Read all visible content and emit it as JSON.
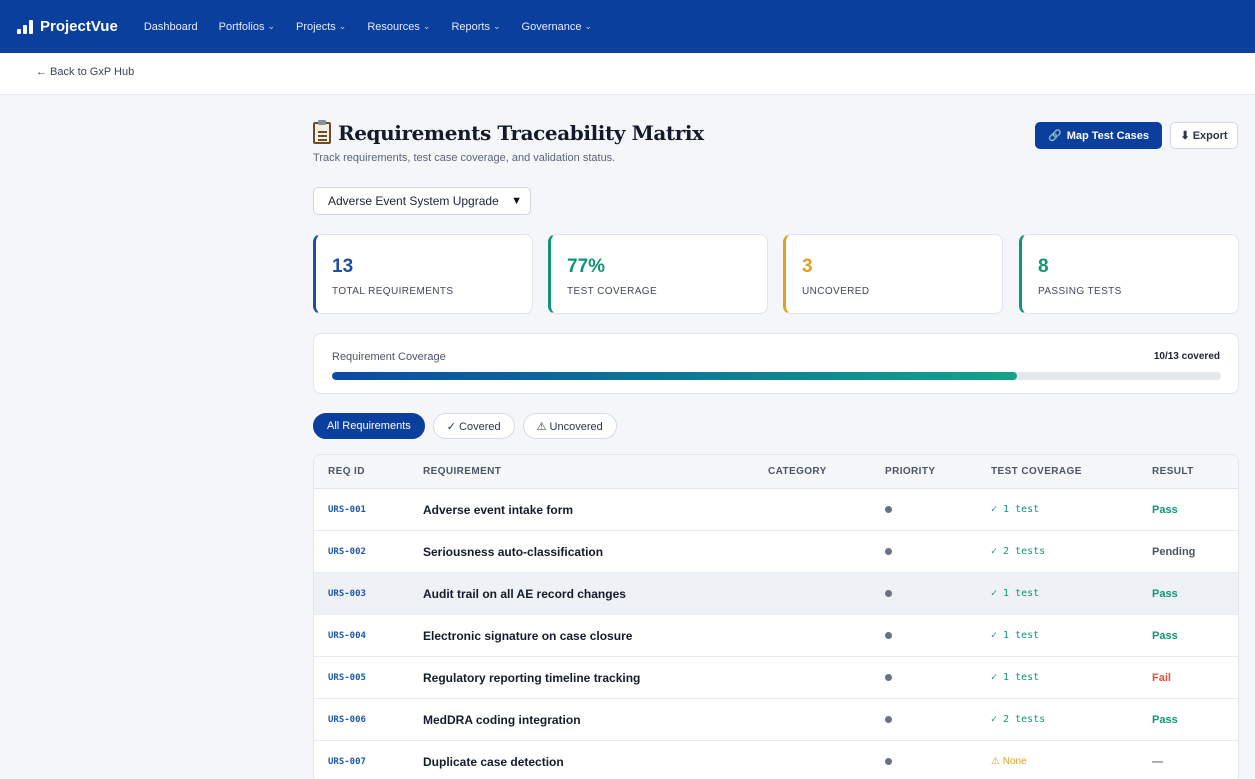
{
  "nav": {
    "brand": "ProjectVue",
    "items": [
      "Dashboard",
      "Portfolios",
      "Projects",
      "Resources",
      "Reports",
      "Governance"
    ]
  },
  "subbar": {
    "back_label": "← Back to GxP Hub"
  },
  "header": {
    "title": "Requirements Traceability Matrix",
    "subtitle": "Track requirements, test case coverage, and validation status.",
    "map_button": "Map Test Cases",
    "export_button": "Export"
  },
  "project_select": {
    "value": "Adverse Event System Upgrade"
  },
  "stats": [
    {
      "value": "13",
      "label": "TOTAL REQUIREMENTS",
      "color": "#1b4fa0"
    },
    {
      "value": "77%",
      "label": "TEST COVERAGE",
      "color": "#119578"
    },
    {
      "value": "3",
      "label": "UNCOVERED",
      "color": "#e0a020"
    },
    {
      "value": "8",
      "label": "PASSING TESTS",
      "color": "#119578"
    }
  ],
  "coverage": {
    "label": "Requirement Coverage",
    "count": "10/13 covered",
    "fraction": 0.77
  },
  "filters": [
    "All Requirements",
    "✓ Covered",
    "⚠ Uncovered"
  ],
  "table": {
    "columns": [
      "REQ ID",
      "REQUIREMENT",
      "CATEGORY",
      "PRIORITY",
      "TEST COVERAGE",
      "RESULT"
    ],
    "rows": [
      {
        "id": "URS-001",
        "requirement": "Adverse event intake form",
        "coverage": "✓ 1 test",
        "result": "Pass"
      },
      {
        "id": "URS-002",
        "requirement": "Seriousness auto-classification",
        "coverage": "✓ 2 tests",
        "result": "Pending"
      },
      {
        "id": "URS-003",
        "requirement": "Audit trail on all AE record changes",
        "coverage": "✓ 1 test",
        "result": "Pass"
      },
      {
        "id": "URS-004",
        "requirement": "Electronic signature on case closure",
        "coverage": "✓ 1 test",
        "result": "Pass"
      },
      {
        "id": "URS-005",
        "requirement": "Regulatory reporting timeline tracking",
        "coverage": "✓ 1 test",
        "result": "Fail"
      },
      {
        "id": "URS-006",
        "requirement": "MedDRA coding integration",
        "coverage": "✓ 2 tests",
        "result": "Pass"
      },
      {
        "id": "URS-007",
        "requirement": "Duplicate case detection",
        "coverage": "⚠ None",
        "result": "—"
      }
    ]
  },
  "colors": {
    "brand": "#0a3f9e",
    "pass": "#119578",
    "fail": "#e0523c",
    "pending": "#4c5567",
    "warning": "#e0a020"
  }
}
